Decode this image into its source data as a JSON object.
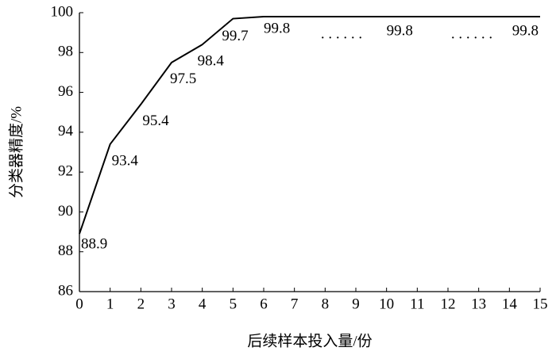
{
  "chart_data": {
    "type": "line",
    "x": [
      0,
      1,
      2,
      3,
      4,
      5,
      6,
      10,
      15
    ],
    "series": [
      {
        "color": "#000000",
        "values": [
          88.9,
          93.4,
          95.4,
          97.5,
          98.4,
          99.7,
          99.8,
          99.8,
          99.8
        ]
      }
    ],
    "xlim": [
      0,
      15
    ],
    "xticks": [
      0,
      1,
      2,
      3,
      4,
      5,
      6,
      7,
      8,
      9,
      10,
      11,
      12,
      13,
      14,
      15
    ],
    "ylim": [
      86,
      100
    ],
    "yticks": [
      86,
      88,
      90,
      92,
      94,
      96,
      98,
      100
    ],
    "xlabel": "后续样本投入量/份",
    "ylabel": "分类器精度/%",
    "annotations": [
      ". . . . . .",
      ". . . . . ."
    ]
  }
}
